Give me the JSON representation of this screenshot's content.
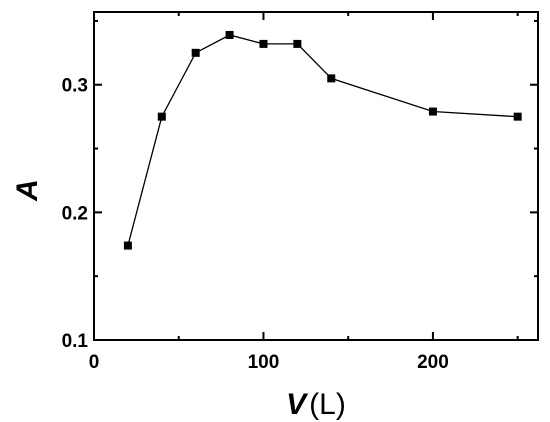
{
  "chart_data": {
    "type": "line",
    "title": "",
    "xlabel": {
      "symbol": "V",
      "unit": "(L)"
    },
    "ylabel": "A",
    "xlim": [
      0,
      262
    ],
    "ylim": [
      0.1,
      0.357
    ],
    "xticks": [
      0,
      100,
      200
    ],
    "yticks": [
      0.1,
      0.2,
      0.3
    ],
    "ytick_labels": [
      "0.1",
      "0.2",
      "0.3"
    ],
    "grid": false,
    "series": [
      {
        "marker": "square",
        "color": "#000000",
        "points": [
          {
            "x": 20,
            "y": 0.174
          },
          {
            "x": 40,
            "y": 0.275
          },
          {
            "x": 60,
            "y": 0.325
          },
          {
            "x": 80,
            "y": 0.339
          },
          {
            "x": 100,
            "y": 0.332
          },
          {
            "x": 120,
            "y": 0.332
          },
          {
            "x": 140,
            "y": 0.305
          },
          {
            "x": 200,
            "y": 0.279
          },
          {
            "x": 250,
            "y": 0.275
          }
        ]
      }
    ]
  }
}
